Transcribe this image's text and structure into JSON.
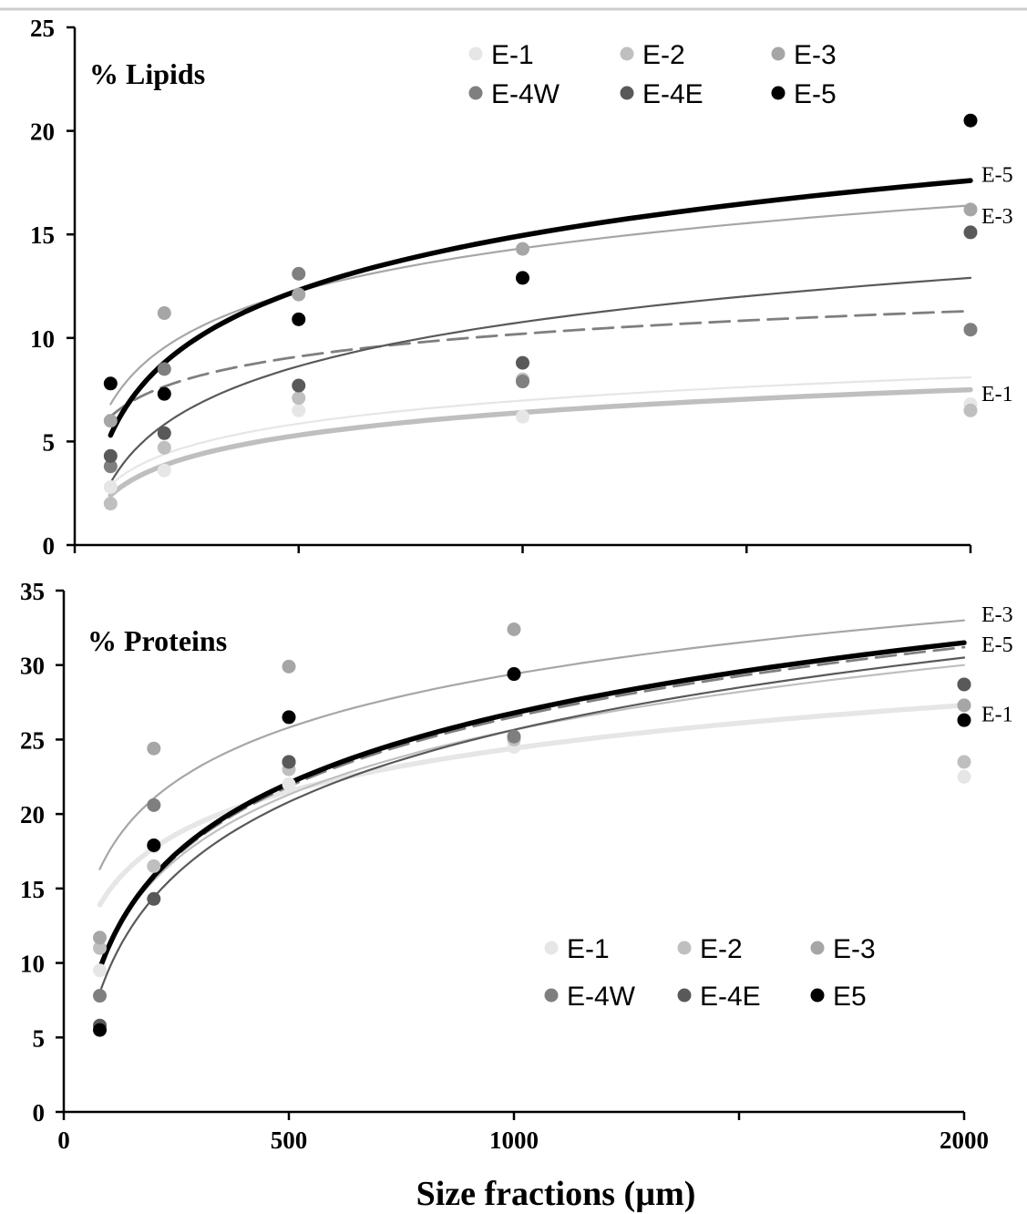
{
  "chart_data": [
    {
      "type": "scatter",
      "title": "% Lipids",
      "xlabel": "",
      "ylabel": "",
      "xlim": [
        0,
        2000
      ],
      "ylim": [
        0,
        25
      ],
      "x_ticks": [
        0,
        500,
        1000,
        1500,
        2000
      ],
      "x_tick_labels": [
        "",
        "",
        "",
        "",
        ""
      ],
      "y_ticks": [
        0,
        5,
        10,
        15,
        20,
        25
      ],
      "y_tick_labels": [
        "0",
        "5",
        "10",
        "15",
        "20",
        "25"
      ],
      "legend_position": "top-right",
      "x": [
        80,
        200,
        500,
        1000,
        2000
      ],
      "series": [
        {
          "name": "E-1",
          "color": "#e6e6e6",
          "values": [
            2.8,
            3.6,
            6.5,
            6.2,
            6.8
          ]
        },
        {
          "name": "E-2",
          "color": "#bfbfbf",
          "values": [
            2.0,
            4.7,
            7.1,
            8.0,
            6.5
          ]
        },
        {
          "name": "E-3",
          "color": "#a6a6a6",
          "values": [
            6.0,
            11.2,
            12.1,
            14.3,
            16.2
          ]
        },
        {
          "name": "E-4W",
          "color": "#7f7f7f",
          "values": [
            3.8,
            8.5,
            13.1,
            7.9,
            10.4
          ]
        },
        {
          "name": "E-4E",
          "color": "#595959",
          "values": [
            4.3,
            5.4,
            7.7,
            8.8,
            15.1
          ]
        },
        {
          "name": "E-5",
          "color": "#000000",
          "values": [
            7.8,
            7.3,
            10.9,
            12.9,
            20.5
          ]
        }
      ],
      "fits": [
        {
          "series": "E-1",
          "style": "thin",
          "values": [
            2.9,
            8.1
          ]
        },
        {
          "series": "E-2",
          "style": "thick",
          "values": [
            2.4,
            7.5
          ]
        },
        {
          "series": "E-3",
          "style": "thin",
          "values": [
            6.8,
            16.4
          ]
        },
        {
          "series": "E-4W",
          "style": "dashed",
          "values": [
            6.2,
            11.3
          ]
        },
        {
          "series": "E-4E",
          "style": "thin",
          "values": [
            3.0,
            12.9
          ]
        },
        {
          "series": "E-5",
          "style": "thick",
          "values": [
            5.3,
            17.6
          ]
        }
      ],
      "end_labels": [
        {
          "text": "E-5",
          "y": 17.9
        },
        {
          "text": "E-3",
          "y": 15.9
        },
        {
          "text": "E-1",
          "y": 7.3
        }
      ]
    },
    {
      "type": "scatter",
      "title": "% Proteins",
      "xlabel": "Size fractions (µm)",
      "ylabel": "",
      "xlim": [
        0,
        2000
      ],
      "ylim": [
        0,
        35
      ],
      "x_ticks": [
        0,
        500,
        1000,
        1500,
        2000
      ],
      "x_tick_labels": [
        "0",
        "500",
        "1000",
        "",
        "2000"
      ],
      "y_ticks": [
        0,
        5,
        10,
        15,
        20,
        25,
        30,
        35
      ],
      "y_tick_labels": [
        "0",
        "5",
        "10",
        "15",
        "20",
        "25",
        "30",
        "35"
      ],
      "legend_position": "bottom-right",
      "x": [
        80,
        200,
        500,
        1000,
        2000
      ],
      "series": [
        {
          "name": "E-1",
          "color": "#e6e6e6",
          "values": [
            9.5,
            17.8,
            22.0,
            24.5,
            22.5
          ]
        },
        {
          "name": "E-2",
          "color": "#bfbfbf",
          "values": [
            11.0,
            16.5,
            23.0,
            25.0,
            23.5
          ]
        },
        {
          "name": "E-3",
          "color": "#a6a6a6",
          "values": [
            11.7,
            24.4,
            29.9,
            32.4,
            27.3
          ]
        },
        {
          "name": "E-4W",
          "color": "#7f7f7f",
          "values": [
            7.8,
            20.6,
            23.5,
            25.2,
            28.7
          ]
        },
        {
          "name": "E-4E",
          "color": "#595959",
          "values": [
            5.8,
            14.3,
            23.5,
            29.4,
            28.7
          ]
        },
        {
          "name": "E5",
          "color": "#000000",
          "values": [
            5.5,
            17.9,
            26.5,
            29.4,
            26.3
          ]
        }
      ],
      "fits": [
        {
          "series": "E-1",
          "style": "thick",
          "values": [
            13.9,
            27.3
          ]
        },
        {
          "series": "E-2",
          "style": "thin",
          "values": [
            9.8,
            30.0
          ]
        },
        {
          "series": "E-3",
          "style": "thin",
          "values": [
            16.3,
            33.0
          ]
        },
        {
          "series": "E-4W",
          "style": "dashed",
          "values": [
            9.5,
            31.2
          ]
        },
        {
          "series": "E-4E",
          "style": "thin",
          "values": [
            8.0,
            30.5
          ]
        },
        {
          "series": "E5",
          "style": "thick",
          "values": [
            9.6,
            31.5
          ]
        }
      ],
      "end_labels": [
        {
          "text": "E-3",
          "y": 33.4
        },
        {
          "text": "E-5",
          "y": 31.4
        },
        {
          "text": "E-1",
          "y": 26.7
        }
      ]
    }
  ]
}
